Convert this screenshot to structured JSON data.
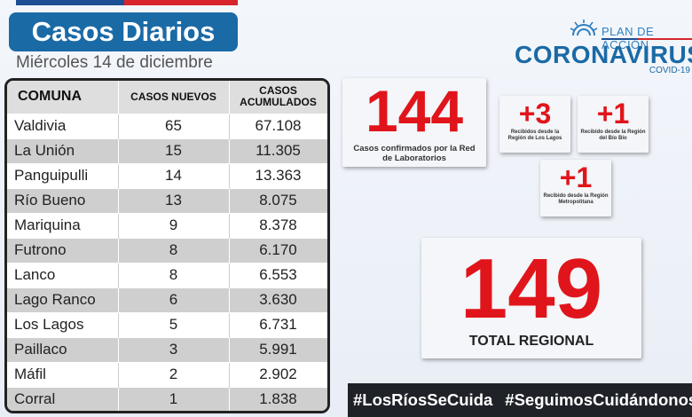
{
  "header": {
    "title": "Casos Diarios",
    "date": "Miércoles 14 de diciembre"
  },
  "colors": {
    "accent_blue": "#1a6aa6",
    "accent_red": "#e0151b",
    "brand_dark_blue": "#1c4f94"
  },
  "logo": {
    "plan": "PLAN DE ACCIÓN",
    "title": "CORONAVIRUS",
    "subtitle": "COVID-19",
    "icon": "sun-emblem-icon"
  },
  "table": {
    "headers": {
      "comuna": "COMUNA",
      "nuevos": "CASOS NUEVOS",
      "acumulados_1": "CASOS",
      "acumulados_2": "ACUMULADOS"
    },
    "rows": [
      {
        "comuna": "Valdivia",
        "nuevos": "65",
        "acumulados": "67.108"
      },
      {
        "comuna": "La Unión",
        "nuevos": "15",
        "acumulados": "11.305"
      },
      {
        "comuna": "Panguipulli",
        "nuevos": "14",
        "acumulados": "13.363"
      },
      {
        "comuna": "Río Bueno",
        "nuevos": "13",
        "acumulados": "8.075"
      },
      {
        "comuna": "Mariquina",
        "nuevos": "9",
        "acumulados": "8.378"
      },
      {
        "comuna": "Futrono",
        "nuevos": "8",
        "acumulados": "6.170"
      },
      {
        "comuna": "Lanco",
        "nuevos": "8",
        "acumulados": "6.553"
      },
      {
        "comuna": "Lago Ranco",
        "nuevos": "6",
        "acumulados": "3.630"
      },
      {
        "comuna": "Los Lagos",
        "nuevos": "5",
        "acumulados": "6.731"
      },
      {
        "comuna": "Paillaco",
        "nuevos": "3",
        "acumulados": "5.991"
      },
      {
        "comuna": "Máfil",
        "nuevos": "2",
        "acumulados": "2.902"
      },
      {
        "comuna": "Corral",
        "nuevos": "1",
        "acumulados": "1.838"
      }
    ]
  },
  "cards": {
    "lab": {
      "value": "144",
      "caption": "Casos confirmados por la Red de Laboratorios"
    },
    "los_lagos": {
      "value": "+3",
      "caption": "Recibidos desde la Región de Los Lagos"
    },
    "bio_bio": {
      "value": "+1",
      "caption": "Recibido desde la Región del Bío Bío"
    },
    "metropolitana": {
      "value": "+1",
      "caption": "Recibido desde la Región Metropolitana"
    },
    "total": {
      "value": "149",
      "caption": "TOTAL REGIONAL"
    }
  },
  "hashtags": [
    "#LosRíosSeCuida",
    "#SeguimosCuidándonos"
  ]
}
